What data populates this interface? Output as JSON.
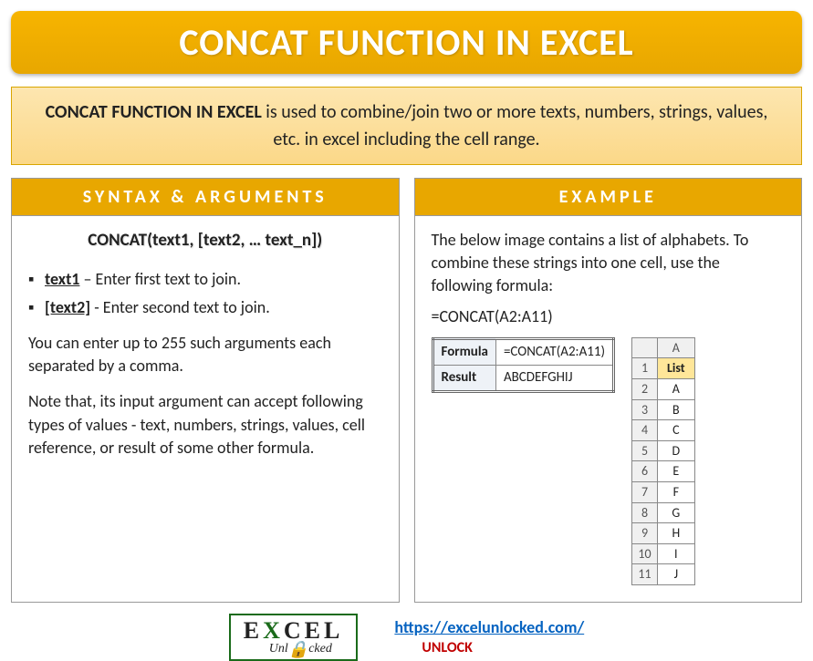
{
  "title": "CONCAT FUNCTION IN EXCEL",
  "intro": {
    "bold": "CONCAT FUNCTION IN EXCEL",
    "rest": " is used to combine/join two or more texts, numbers, strings, values, etc. in excel including the cell range."
  },
  "syntax": {
    "header": "SYNTAX & ARGUMENTS",
    "formula": "CONCAT(text1, [text2, … text_n])",
    "args": [
      {
        "name": "text1",
        "desc": " – Enter first text to join."
      },
      {
        "name": "[text2]",
        "desc": " - Enter second text to join."
      }
    ],
    "para1": "You can enter up to 255 such arguments each separated by a comma.",
    "para2": "Note that, its input argument can accept following types of values - text, numbers, strings, values, cell reference, or result of some other formula."
  },
  "example": {
    "header": "EXAMPLE",
    "intro": "The below image contains a list of alphabets. To combine these strings into one cell, use the following formula:",
    "formula_text": "=CONCAT(A2:A11)",
    "result_table": {
      "r1c1": "Formula",
      "r1c2": "=CONCAT(A2:A11)",
      "r2c1": "Result",
      "r2c2": "ABCDEFGHIJ"
    },
    "list": {
      "col": "A",
      "header": "List",
      "rows": [
        "A",
        "B",
        "C",
        "D",
        "E",
        "F",
        "G",
        "H",
        "I",
        "J"
      ]
    }
  },
  "footer": {
    "logo_top_pre": "E",
    "logo_top_x": "X",
    "logo_top_post": "CEL",
    "logo_bottom": "Unl   cked",
    "link": "https://excelunlocked.com/",
    "unlock": "UNLOCK"
  },
  "colors": {
    "title_bg": "#e8a700",
    "intro_bg": "#fbd888",
    "header_bg": "#e8a700",
    "link": "#0563c1",
    "unlock": "#c00000",
    "logo_green": "#1a6b1a"
  }
}
